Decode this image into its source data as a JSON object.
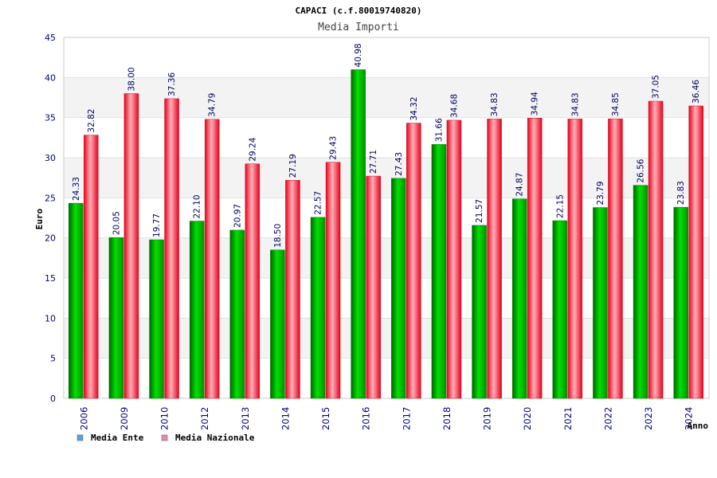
{
  "chart_data": {
    "type": "bar",
    "title": "CAPACI (c.f.80019740820)",
    "subtitle": "Media Importi",
    "xlabel": "Anno",
    "ylabel": "Euro",
    "ylim": [
      0,
      45
    ],
    "yticks": [
      "0",
      "5",
      "10",
      "15",
      "20",
      "25",
      "30",
      "35",
      "40",
      "45"
    ],
    "categories": [
      "2006",
      "2009",
      "2010",
      "2012",
      "2013",
      "2014",
      "2015",
      "2016",
      "2017",
      "2018",
      "2019",
      "2020",
      "2021",
      "2022",
      "2023",
      "2024"
    ],
    "series": [
      {
        "name": "Media Ente",
        "color": "#00aa00",
        "values": [
          24.33,
          20.05,
          19.77,
          22.1,
          20.97,
          18.5,
          22.57,
          40.98,
          27.43,
          31.66,
          21.57,
          24.87,
          22.15,
          23.79,
          26.56,
          23.83
        ]
      },
      {
        "name": "Media Nazionale",
        "color": "#ee1c24",
        "values": [
          32.82,
          38.0,
          37.36,
          34.79,
          29.24,
          27.19,
          29.43,
          27.71,
          34.32,
          34.68,
          34.83,
          34.94,
          34.83,
          34.85,
          37.05,
          36.46
        ]
      }
    ],
    "legend_swatch_colors": [
      "#5aa0e8",
      "#e88ab0"
    ],
    "grid": true,
    "legend_position": "bottom-left"
  }
}
